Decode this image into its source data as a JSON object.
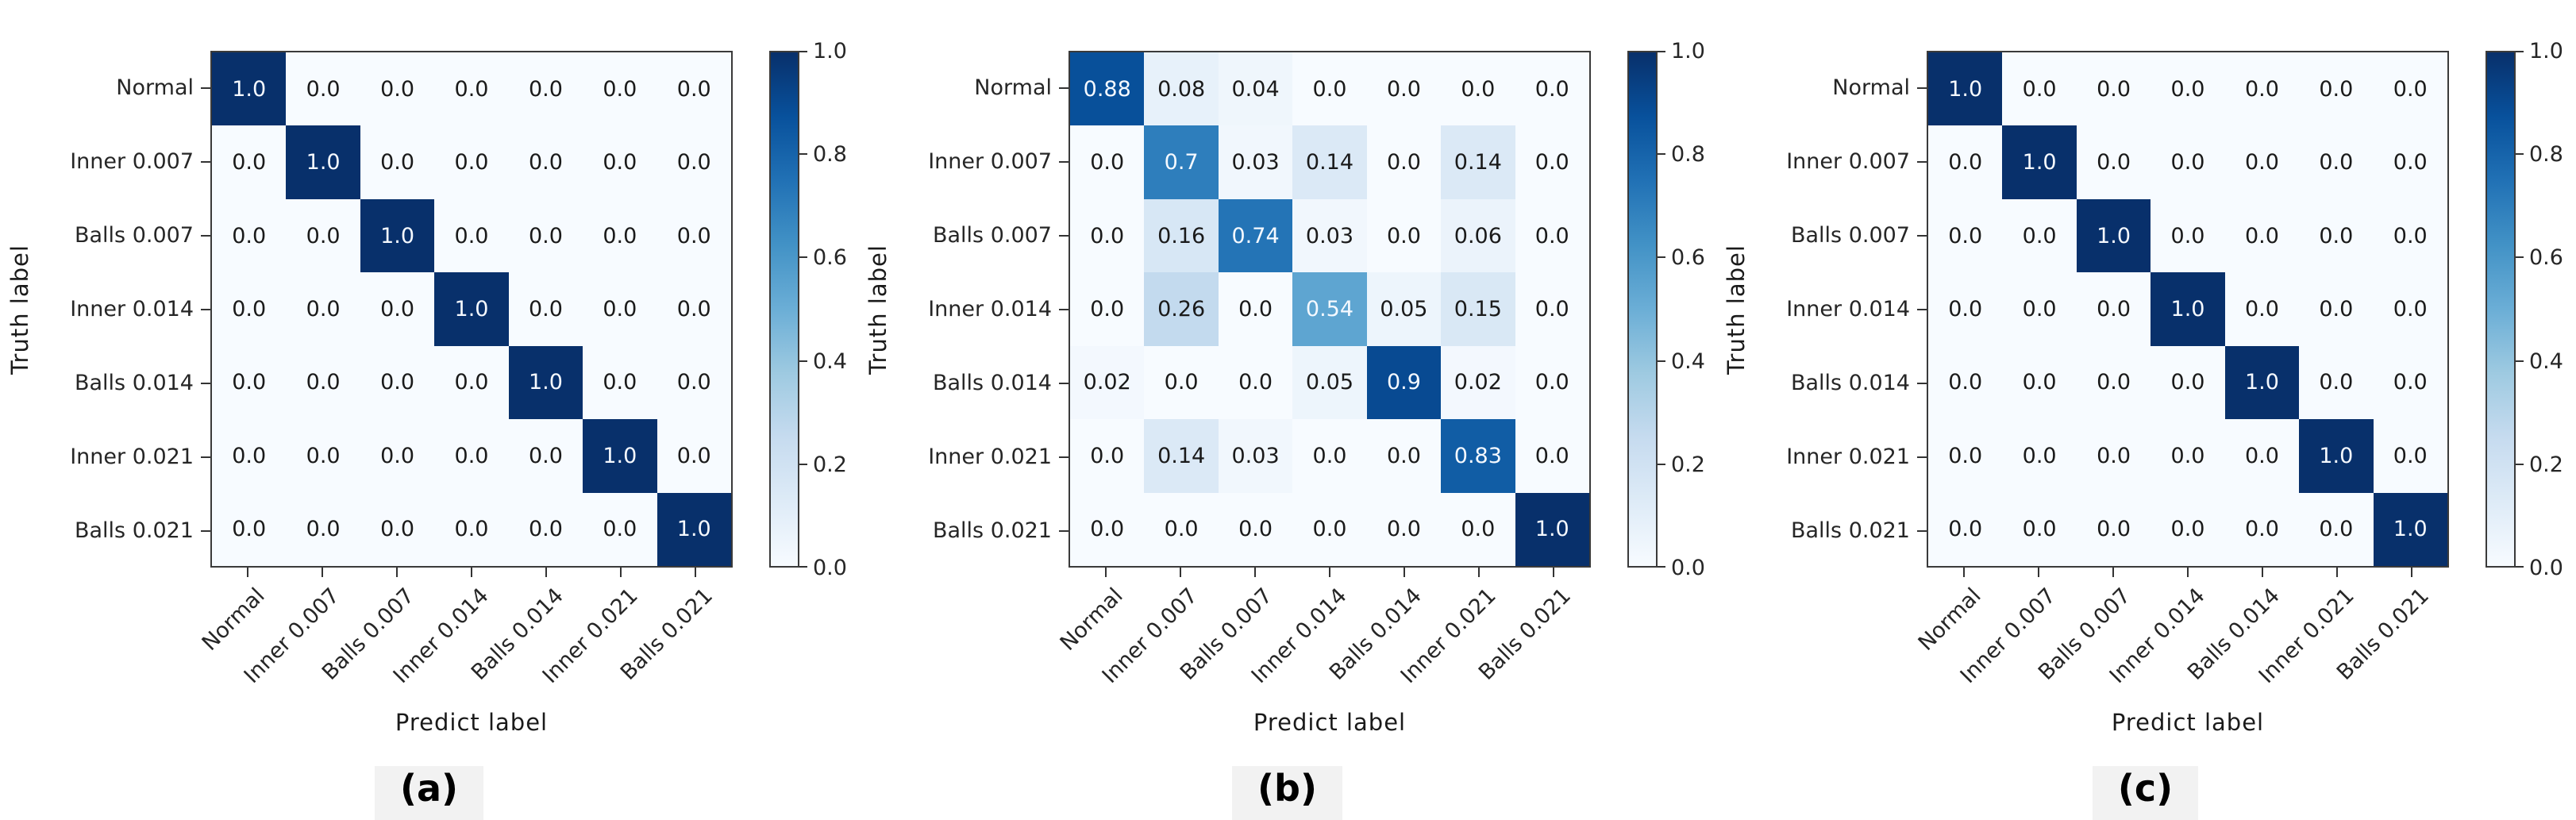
{
  "page": {
    "background": "#ffffff"
  },
  "palette": {
    "colormap": "Blues",
    "colormap_stops": [
      "#f7fbff",
      "#deebf7",
      "#c6dbef",
      "#9ecae1",
      "#6baed6",
      "#4292c6",
      "#2171b5",
      "#08519c",
      "#08306b"
    ],
    "axis_color": "#333333",
    "tick_label_color": "#262626",
    "cell_text_dark": "#1a1a1a",
    "cell_text_light": "#f5f9ff",
    "caption_bg": "#f2f2f2"
  },
  "chart_data": [
    {
      "type": "heatmap",
      "caption": "(a)",
      "xlabel": "Predict label",
      "ylabel": "Truth label",
      "categories": [
        "Normal",
        "Inner 0.007",
        "Balls 0.007",
        "Inner 0.014",
        "Balls 0.014",
        "Inner 0.021",
        "Balls 0.021"
      ],
      "matrix": [
        [
          1.0,
          0.0,
          0.0,
          0.0,
          0.0,
          0.0,
          0.0
        ],
        [
          0.0,
          1.0,
          0.0,
          0.0,
          0.0,
          0.0,
          0.0
        ],
        [
          0.0,
          0.0,
          1.0,
          0.0,
          0.0,
          0.0,
          0.0
        ],
        [
          0.0,
          0.0,
          0.0,
          1.0,
          0.0,
          0.0,
          0.0
        ],
        [
          0.0,
          0.0,
          0.0,
          0.0,
          1.0,
          0.0,
          0.0
        ],
        [
          0.0,
          0.0,
          0.0,
          0.0,
          0.0,
          1.0,
          0.0
        ],
        [
          0.0,
          0.0,
          0.0,
          0.0,
          0.0,
          0.0,
          1.0
        ]
      ],
      "colorbar": {
        "min": 0.0,
        "max": 1.0,
        "ticks": [
          1.0,
          0.8,
          0.6,
          0.4,
          0.2,
          0.0
        ]
      },
      "value_text_threshold": 0.5,
      "grid": false,
      "legend": "colorbar-right"
    },
    {
      "type": "heatmap",
      "caption": "(b)",
      "xlabel": "Predict label",
      "ylabel": "Truth label",
      "categories": [
        "Normal",
        "Inner 0.007",
        "Balls 0.007",
        "Inner 0.014",
        "Balls 0.014",
        "Inner 0.021",
        "Balls 0.021"
      ],
      "matrix": [
        [
          0.88,
          0.08,
          0.04,
          0.0,
          0.0,
          0.0,
          0.0
        ],
        [
          0.0,
          0.7,
          0.03,
          0.14,
          0.0,
          0.14,
          0.0
        ],
        [
          0.0,
          0.16,
          0.74,
          0.03,
          0.0,
          0.06,
          0.0
        ],
        [
          0.0,
          0.26,
          0.0,
          0.54,
          0.05,
          0.15,
          0.0
        ],
        [
          0.02,
          0.0,
          0.0,
          0.05,
          0.9,
          0.02,
          0.0
        ],
        [
          0.0,
          0.14,
          0.03,
          0.0,
          0.0,
          0.83,
          0.0
        ],
        [
          0.0,
          0.0,
          0.0,
          0.0,
          0.0,
          0.0,
          1.0
        ]
      ],
      "colorbar": {
        "min": 0.0,
        "max": 1.0,
        "ticks": [
          1.0,
          0.8,
          0.6,
          0.4,
          0.2,
          0.0
        ]
      },
      "value_text_threshold": 0.5,
      "grid": false,
      "legend": "colorbar-right"
    },
    {
      "type": "heatmap",
      "caption": "(c)",
      "xlabel": "Predict label",
      "ylabel": "Truth label",
      "categories": [
        "Normal",
        "Inner 0.007",
        "Balls 0.007",
        "Inner 0.014",
        "Balls 0.014",
        "Inner 0.021",
        "Balls 0.021"
      ],
      "matrix": [
        [
          1.0,
          0.0,
          0.0,
          0.0,
          0.0,
          0.0,
          0.0
        ],
        [
          0.0,
          1.0,
          0.0,
          0.0,
          0.0,
          0.0,
          0.0
        ],
        [
          0.0,
          0.0,
          1.0,
          0.0,
          0.0,
          0.0,
          0.0
        ],
        [
          0.0,
          0.0,
          0.0,
          1.0,
          0.0,
          0.0,
          0.0
        ],
        [
          0.0,
          0.0,
          0.0,
          0.0,
          1.0,
          0.0,
          0.0
        ],
        [
          0.0,
          0.0,
          0.0,
          0.0,
          0.0,
          1.0,
          0.0
        ],
        [
          0.0,
          0.0,
          0.0,
          0.0,
          0.0,
          0.0,
          1.0
        ]
      ],
      "colorbar": {
        "min": 0.0,
        "max": 1.0,
        "ticks": [
          1.0,
          0.8,
          0.6,
          0.4,
          0.2,
          0.0
        ]
      },
      "value_text_threshold": 0.5,
      "grid": false,
      "legend": "colorbar-right"
    }
  ]
}
